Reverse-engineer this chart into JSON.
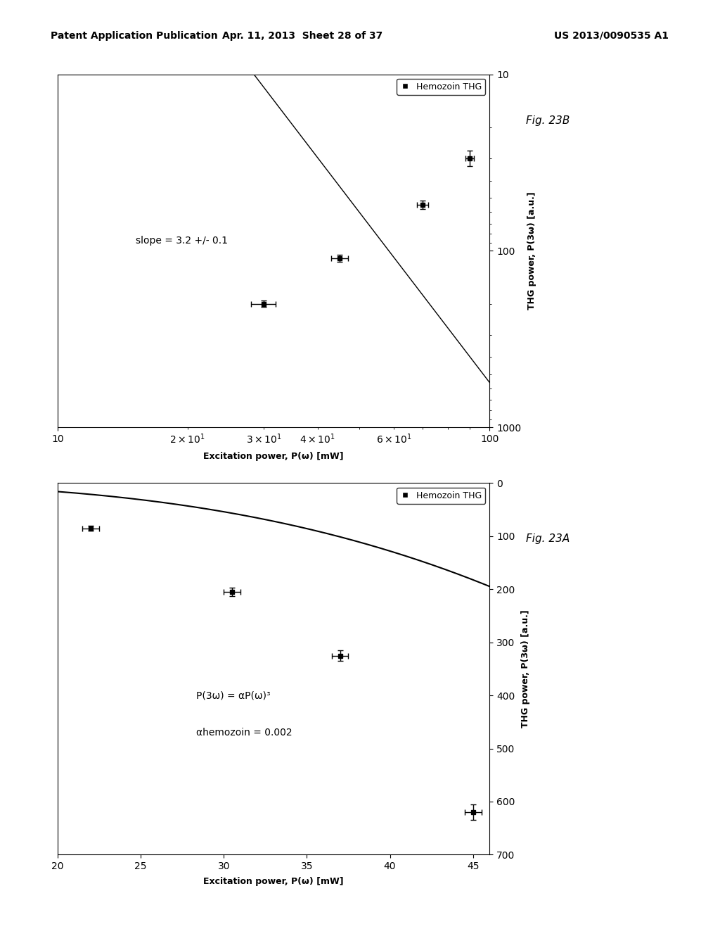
{
  "fig23B": {
    "title": "Fig. 23B",
    "annotation": "slope = 3.2 +/- 0.1",
    "legend_label": "Hemozoin THG",
    "exc_data": [
      90,
      70,
      45,
      30
    ],
    "thg_data": [
      30,
      55,
      110,
      200
    ],
    "exc_err": [
      2,
      2,
      2,
      2
    ],
    "thg_err": [
      3,
      3,
      5,
      8
    ],
    "exc_lim": [
      10,
      100
    ],
    "thg_lim": [
      10,
      1000
    ],
    "slope": 3.2
  },
  "fig23A": {
    "title": "Fig. 23A",
    "annotation1": "P(3ω) = αP(ω)³",
    "annotation2": "αhemozoin = 0.002",
    "legend_label": "Hemozoin THG",
    "exc_data": [
      45,
      37,
      30.5,
      22
    ],
    "thg_data": [
      620,
      325,
      205,
      85
    ],
    "exc_err": [
      0.5,
      0.5,
      0.5,
      0.5
    ],
    "thg_err": [
      15,
      10,
      8,
      5
    ],
    "exc_lim": [
      20,
      46
    ],
    "thg_lim": [
      0,
      700
    ],
    "alpha": 0.002
  },
  "header_left": "Patent Application Publication",
  "header_center": "Apr. 11, 2013  Sheet 28 of 37",
  "header_right": "US 2013/0090535 A1",
  "bg_color": "#ffffff",
  "xlabel_thg": "THG power, P(3ω) [a.u.]",
  "ylabel_exc": "Excitation power, P(ω) [mW]"
}
